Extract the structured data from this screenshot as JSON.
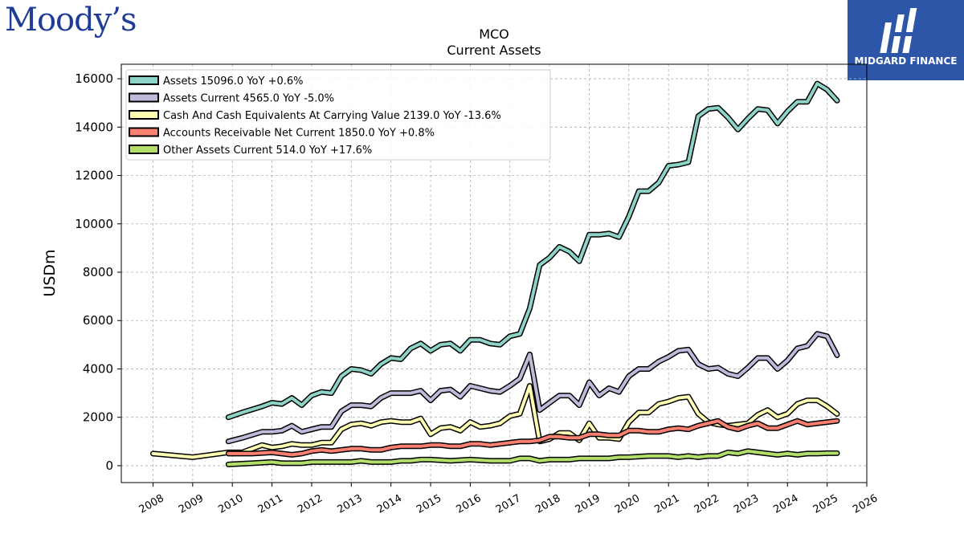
{
  "branding": {
    "left_logo_text": "Moody’s",
    "right_logo_text": "MIDGARD FINANCE",
    "right_logo_color": "#2e56a8"
  },
  "chart_data": {
    "type": "line",
    "title": "MCO",
    "subtitle": "Current  Assets",
    "ylabel": "USDm",
    "xlabel": "",
    "xlim": [
      2007.2,
      2026.0
    ],
    "ylim": [
      -700,
      16600
    ],
    "x_ticks": [
      "2008",
      "2009",
      "2010",
      "2011",
      "2012",
      "2013",
      "2014",
      "2015",
      "2016",
      "2017",
      "2018",
      "2019",
      "2020",
      "2021",
      "2022",
      "2023",
      "2024",
      "2025",
      "2026"
    ],
    "y_ticks": [
      0,
      2000,
      4000,
      6000,
      8000,
      10000,
      12000,
      14000,
      16000
    ],
    "grid": true,
    "legend_position": "top-left",
    "series": [
      {
        "name": "Assets  15096.0 YoY +0.6%",
        "color": "#8dd3c7",
        "points": [
          [
            2009.9,
            2000
          ],
          [
            2010.25,
            2200
          ],
          [
            2010.75,
            2450
          ],
          [
            2011.0,
            2600
          ],
          [
            2011.25,
            2550
          ],
          [
            2011.5,
            2800
          ],
          [
            2011.75,
            2500
          ],
          [
            2012.0,
            2900
          ],
          [
            2012.25,
            3050
          ],
          [
            2012.5,
            3000
          ],
          [
            2012.75,
            3700
          ],
          [
            2013.0,
            4000
          ],
          [
            2013.25,
            3950
          ],
          [
            2013.5,
            3800
          ],
          [
            2013.75,
            4200
          ],
          [
            2014.0,
            4450
          ],
          [
            2014.25,
            4400
          ],
          [
            2014.5,
            4850
          ],
          [
            2014.75,
            5050
          ],
          [
            2015.0,
            4750
          ],
          [
            2015.25,
            5000
          ],
          [
            2015.5,
            5050
          ],
          [
            2015.75,
            4750
          ],
          [
            2016.0,
            5200
          ],
          [
            2016.25,
            5200
          ],
          [
            2016.5,
            5050
          ],
          [
            2016.75,
            5000
          ],
          [
            2017.0,
            5350
          ],
          [
            2017.25,
            5450
          ],
          [
            2017.5,
            6500
          ],
          [
            2017.75,
            8300
          ],
          [
            2018.0,
            8600
          ],
          [
            2018.25,
            9050
          ],
          [
            2018.5,
            8850
          ],
          [
            2018.75,
            8450
          ],
          [
            2019.0,
            9550
          ],
          [
            2019.25,
            9550
          ],
          [
            2019.5,
            9600
          ],
          [
            2019.75,
            9450
          ],
          [
            2020.0,
            10300
          ],
          [
            2020.25,
            11350
          ],
          [
            2020.5,
            11350
          ],
          [
            2020.75,
            11700
          ],
          [
            2021.0,
            12400
          ],
          [
            2021.25,
            12450
          ],
          [
            2021.5,
            12550
          ],
          [
            2021.75,
            14450
          ],
          [
            2022.0,
            14750
          ],
          [
            2022.25,
            14800
          ],
          [
            2022.5,
            14400
          ],
          [
            2022.75,
            13900
          ],
          [
            2023.0,
            14350
          ],
          [
            2023.25,
            14750
          ],
          [
            2023.5,
            14700
          ],
          [
            2023.75,
            14150
          ],
          [
            2024.0,
            14650
          ],
          [
            2024.25,
            15050
          ],
          [
            2024.5,
            15050
          ],
          [
            2024.75,
            15800
          ],
          [
            2025.0,
            15550
          ],
          [
            2025.25,
            15096
          ]
        ]
      },
      {
        "name": "Assets Current  4565.0 YoY -5.0%",
        "color": "#bebada",
        "points": [
          [
            2009.9,
            1000
          ],
          [
            2010.25,
            1150
          ],
          [
            2010.75,
            1400
          ],
          [
            2011.0,
            1400
          ],
          [
            2011.25,
            1450
          ],
          [
            2011.5,
            1650
          ],
          [
            2011.75,
            1400
          ],
          [
            2012.0,
            1500
          ],
          [
            2012.25,
            1600
          ],
          [
            2012.5,
            1600
          ],
          [
            2012.75,
            2250
          ],
          [
            2013.0,
            2500
          ],
          [
            2013.25,
            2500
          ],
          [
            2013.5,
            2450
          ],
          [
            2013.75,
            2800
          ],
          [
            2014.0,
            3000
          ],
          [
            2014.25,
            3000
          ],
          [
            2014.5,
            3000
          ],
          [
            2014.75,
            3100
          ],
          [
            2015.0,
            2700
          ],
          [
            2015.25,
            3100
          ],
          [
            2015.5,
            3150
          ],
          [
            2015.75,
            2850
          ],
          [
            2016.0,
            3300
          ],
          [
            2016.25,
            3200
          ],
          [
            2016.5,
            3100
          ],
          [
            2016.75,
            3050
          ],
          [
            2017.0,
            3300
          ],
          [
            2017.25,
            3600
          ],
          [
            2017.5,
            4600
          ],
          [
            2017.75,
            2300
          ],
          [
            2018.0,
            2600
          ],
          [
            2018.25,
            2900
          ],
          [
            2018.5,
            2900
          ],
          [
            2018.75,
            2500
          ],
          [
            2019.0,
            3450
          ],
          [
            2019.25,
            2900
          ],
          [
            2019.5,
            3200
          ],
          [
            2019.75,
            3050
          ],
          [
            2020.0,
            3700
          ],
          [
            2020.25,
            4000
          ],
          [
            2020.5,
            4000
          ],
          [
            2020.75,
            4300
          ],
          [
            2021.0,
            4500
          ],
          [
            2021.25,
            4750
          ],
          [
            2021.5,
            4800
          ],
          [
            2021.75,
            4200
          ],
          [
            2022.0,
            4000
          ],
          [
            2022.25,
            4050
          ],
          [
            2022.5,
            3800
          ],
          [
            2022.75,
            3700
          ],
          [
            2023.0,
            4050
          ],
          [
            2023.25,
            4450
          ],
          [
            2023.5,
            4450
          ],
          [
            2023.75,
            4000
          ],
          [
            2024.0,
            4350
          ],
          [
            2024.25,
            4850
          ],
          [
            2024.5,
            4950
          ],
          [
            2024.75,
            5450
          ],
          [
            2025.0,
            5350
          ],
          [
            2025.25,
            4565
          ]
        ]
      },
      {
        "name": "Cash And Cash Equivalents At Carrying Value  2139.0 YoY -13.6%",
        "color": "#ffffb3",
        "points": [
          [
            2008.0,
            500
          ],
          [
            2009.0,
            350
          ],
          [
            2009.9,
            550
          ],
          [
            2010.25,
            550
          ],
          [
            2010.75,
            850
          ],
          [
            2011.0,
            750
          ],
          [
            2011.25,
            800
          ],
          [
            2011.5,
            900
          ],
          [
            2011.75,
            850
          ],
          [
            2012.0,
            850
          ],
          [
            2012.25,
            950
          ],
          [
            2012.5,
            950
          ],
          [
            2012.75,
            1500
          ],
          [
            2013.0,
            1700
          ],
          [
            2013.25,
            1750
          ],
          [
            2013.5,
            1650
          ],
          [
            2013.75,
            1800
          ],
          [
            2014.0,
            1850
          ],
          [
            2014.25,
            1800
          ],
          [
            2014.5,
            1800
          ],
          [
            2014.75,
            1950
          ],
          [
            2015.0,
            1300
          ],
          [
            2015.25,
            1550
          ],
          [
            2015.5,
            1600
          ],
          [
            2015.75,
            1450
          ],
          [
            2016.0,
            1800
          ],
          [
            2016.25,
            1600
          ],
          [
            2016.5,
            1650
          ],
          [
            2016.75,
            1750
          ],
          [
            2017.0,
            2050
          ],
          [
            2017.25,
            2150
          ],
          [
            2017.5,
            3300
          ],
          [
            2017.75,
            1000
          ],
          [
            2018.0,
            1100
          ],
          [
            2018.25,
            1350
          ],
          [
            2018.5,
            1350
          ],
          [
            2018.75,
            1050
          ],
          [
            2019.0,
            1750
          ],
          [
            2019.25,
            1150
          ],
          [
            2019.5,
            1150
          ],
          [
            2019.75,
            1100
          ],
          [
            2020.0,
            1800
          ],
          [
            2020.25,
            2200
          ],
          [
            2020.5,
            2200
          ],
          [
            2020.75,
            2550
          ],
          [
            2021.0,
            2650
          ],
          [
            2021.25,
            2800
          ],
          [
            2021.5,
            2850
          ],
          [
            2021.75,
            2150
          ],
          [
            2022.0,
            1800
          ],
          [
            2022.25,
            1700
          ],
          [
            2022.5,
            1650
          ],
          [
            2022.75,
            1700
          ],
          [
            2023.0,
            1750
          ],
          [
            2023.25,
            2100
          ],
          [
            2023.5,
            2300
          ],
          [
            2023.75,
            2000
          ],
          [
            2024.0,
            2150
          ],
          [
            2024.25,
            2550
          ],
          [
            2024.5,
            2700
          ],
          [
            2024.75,
            2700
          ],
          [
            2025.0,
            2450
          ],
          [
            2025.25,
            2139
          ]
        ]
      },
      {
        "name": "Accounts Receivable Net Current  1850.0 YoY +0.8%",
        "color": "#fb8072",
        "points": [
          [
            2009.9,
            500
          ],
          [
            2010.5,
            500
          ],
          [
            2011.0,
            550
          ],
          [
            2011.25,
            500
          ],
          [
            2011.5,
            450
          ],
          [
            2011.75,
            500
          ],
          [
            2012.0,
            600
          ],
          [
            2012.25,
            650
          ],
          [
            2012.5,
            600
          ],
          [
            2012.75,
            650
          ],
          [
            2013.0,
            700
          ],
          [
            2013.25,
            700
          ],
          [
            2013.5,
            650
          ],
          [
            2013.75,
            650
          ],
          [
            2014.0,
            750
          ],
          [
            2014.25,
            800
          ],
          [
            2014.5,
            800
          ],
          [
            2014.75,
            800
          ],
          [
            2015.0,
            850
          ],
          [
            2015.25,
            850
          ],
          [
            2015.5,
            800
          ],
          [
            2015.75,
            800
          ],
          [
            2016.0,
            900
          ],
          [
            2016.25,
            900
          ],
          [
            2016.5,
            850
          ],
          [
            2016.75,
            900
          ],
          [
            2017.0,
            950
          ],
          [
            2017.25,
            1000
          ],
          [
            2017.5,
            1000
          ],
          [
            2017.75,
            1050
          ],
          [
            2018.0,
            1200
          ],
          [
            2018.25,
            1200
          ],
          [
            2018.5,
            1150
          ],
          [
            2018.75,
            1150
          ],
          [
            2019.0,
            1300
          ],
          [
            2019.25,
            1300
          ],
          [
            2019.5,
            1250
          ],
          [
            2019.75,
            1250
          ],
          [
            2020.0,
            1450
          ],
          [
            2020.25,
            1450
          ],
          [
            2020.5,
            1400
          ],
          [
            2020.75,
            1400
          ],
          [
            2021.0,
            1500
          ],
          [
            2021.25,
            1550
          ],
          [
            2021.5,
            1500
          ],
          [
            2021.75,
            1650
          ],
          [
            2022.0,
            1750
          ],
          [
            2022.25,
            1850
          ],
          [
            2022.5,
            1600
          ],
          [
            2022.75,
            1500
          ],
          [
            2023.0,
            1650
          ],
          [
            2023.25,
            1750
          ],
          [
            2023.5,
            1550
          ],
          [
            2023.75,
            1550
          ],
          [
            2024.0,
            1700
          ],
          [
            2024.25,
            1850
          ],
          [
            2024.5,
            1700
          ],
          [
            2024.75,
            1750
          ],
          [
            2025.0,
            1800
          ],
          [
            2025.25,
            1850
          ]
        ]
      },
      {
        "name": "Other Assets Current  514.0 YoY +17.6%",
        "color": "#b3de69",
        "points": [
          [
            2009.9,
            50
          ],
          [
            2010.5,
            100
          ],
          [
            2011.0,
            150
          ],
          [
            2011.25,
            100
          ],
          [
            2011.75,
            100
          ],
          [
            2012.0,
            150
          ],
          [
            2012.5,
            150
          ],
          [
            2013.0,
            150
          ],
          [
            2013.25,
            200
          ],
          [
            2013.5,
            150
          ],
          [
            2014.0,
            150
          ],
          [
            2014.25,
            200
          ],
          [
            2014.5,
            200
          ],
          [
            2014.75,
            250
          ],
          [
            2015.0,
            250
          ],
          [
            2015.5,
            200
          ],
          [
            2016.0,
            250
          ],
          [
            2016.5,
            200
          ],
          [
            2016.75,
            200
          ],
          [
            2017.0,
            200
          ],
          [
            2017.25,
            300
          ],
          [
            2017.5,
            300
          ],
          [
            2017.75,
            200
          ],
          [
            2018.0,
            250
          ],
          [
            2018.5,
            250
          ],
          [
            2018.75,
            300
          ],
          [
            2019.0,
            300
          ],
          [
            2019.5,
            300
          ],
          [
            2019.75,
            350
          ],
          [
            2020.0,
            350
          ],
          [
            2020.5,
            400
          ],
          [
            2021.0,
            400
          ],
          [
            2021.25,
            350
          ],
          [
            2021.5,
            400
          ],
          [
            2021.75,
            350
          ],
          [
            2022.0,
            400
          ],
          [
            2022.25,
            400
          ],
          [
            2022.5,
            550
          ],
          [
            2022.75,
            500
          ],
          [
            2023.0,
            600
          ],
          [
            2023.25,
            550
          ],
          [
            2023.5,
            500
          ],
          [
            2023.75,
            450
          ],
          [
            2024.0,
            500
          ],
          [
            2024.25,
            450
          ],
          [
            2024.5,
            500
          ],
          [
            2024.75,
            500
          ],
          [
            2025.0,
            514
          ],
          [
            2025.25,
            514
          ]
        ]
      }
    ]
  }
}
